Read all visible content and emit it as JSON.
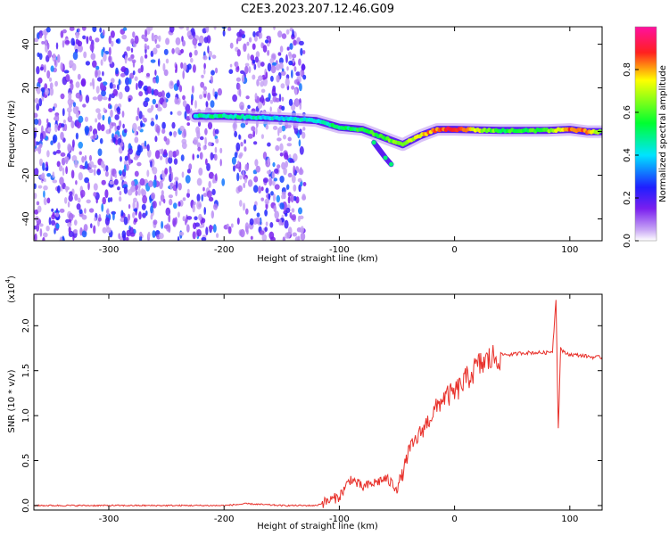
{
  "figure_title": "C2E3.2023.207.12.46.G09",
  "colors": {
    "series_line": "#e8302a",
    "axis": "#000000",
    "background": "#ffffff"
  },
  "chart_data": [
    {
      "type": "heatmap",
      "title": "",
      "xlabel": "Height of straight line (km)",
      "ylabel": "Frequency (Hz)",
      "xlim": [
        -365,
        128
      ],
      "ylim": [
        -50,
        48
      ],
      "x_ticks": [
        -300,
        -200,
        -100,
        0,
        100
      ],
      "y_ticks": [
        -40,
        -20,
        0,
        20,
        40
      ],
      "colorbar": {
        "label": "Normalized spectral amplitude",
        "range": [
          0.0,
          1.0
        ],
        "ticks": [
          0.0,
          0.2,
          0.4,
          0.6,
          0.8
        ],
        "colormap": "rainbow"
      },
      "features": {
        "noise_region_x": [
          -365,
          -130
        ],
        "signal_trace": [
          {
            "x": -225,
            "f": 7,
            "amp": 0.45
          },
          {
            "x": -200,
            "f": 7,
            "amp": 0.5
          },
          {
            "x": -150,
            "f": 6,
            "amp": 0.4
          },
          {
            "x": -120,
            "f": 5,
            "amp": 0.45
          },
          {
            "x": -100,
            "f": 2,
            "amp": 0.5
          },
          {
            "x": -80,
            "f": 1,
            "amp": 0.55
          },
          {
            "x": -60,
            "f": -3,
            "amp": 0.6
          },
          {
            "x": -45,
            "f": -6,
            "amp": 0.65
          },
          {
            "x": -30,
            "f": -2,
            "amp": 0.75
          },
          {
            "x": -15,
            "f": 1,
            "amp": 0.85
          },
          {
            "x": 0,
            "f": 1,
            "amp": 0.9
          },
          {
            "x": 40,
            "f": 0.5,
            "amp": 0.55
          },
          {
            "x": 80,
            "f": 0.5,
            "amp": 0.6
          },
          {
            "x": 100,
            "f": 1,
            "amp": 0.85
          },
          {
            "x": 115,
            "f": 0,
            "amp": 0.85
          },
          {
            "x": 128,
            "f": 0,
            "amp": 0.6
          }
        ],
        "branch": [
          {
            "x": -70,
            "f": -5
          },
          {
            "x": -60,
            "f": -12
          },
          {
            "x": -55,
            "f": -15
          }
        ]
      }
    },
    {
      "type": "line",
      "title": "",
      "xlabel": "Height of straight line (km)",
      "ylabel": "SNR (10 * v/v)",
      "multiplier_label": "(x10",
      "multiplier_exponent": "4",
      "multiplier_close": ")",
      "xlim": [
        -365,
        128
      ],
      "ylim": [
        -0.05,
        2.35
      ],
      "x_ticks": [
        -300,
        -200,
        -100,
        0,
        100
      ],
      "y_ticks": [
        0.0,
        0.5,
        1.0,
        1.5,
        2.0
      ],
      "series": [
        {
          "points": [
            [
              -365,
              0.0
            ],
            [
              -300,
              0.0
            ],
            [
              -250,
              0.0
            ],
            [
              -200,
              0.0
            ],
            [
              -180,
              0.02
            ],
            [
              -150,
              0.0
            ],
            [
              -120,
              0.0
            ],
            [
              -110,
              0.05
            ],
            [
              -100,
              0.1
            ],
            [
              -90,
              0.3
            ],
            [
              -80,
              0.2
            ],
            [
              -70,
              0.25
            ],
            [
              -60,
              0.3
            ],
            [
              -50,
              0.2
            ],
            [
              -45,
              0.35
            ],
            [
              -40,
              0.6
            ],
            [
              -30,
              0.8
            ],
            [
              -20,
              1.0
            ],
            [
              -10,
              1.2
            ],
            [
              0,
              1.25
            ],
            [
              10,
              1.4
            ],
            [
              20,
              1.55
            ],
            [
              30,
              1.62
            ],
            [
              40,
              1.68
            ],
            [
              50,
              1.68
            ],
            [
              60,
              1.7
            ],
            [
              70,
              1.7
            ],
            [
              80,
              1.7
            ],
            [
              85,
              1.72
            ],
            [
              88,
              2.3
            ],
            [
              90,
              0.85
            ],
            [
              92,
              1.75
            ],
            [
              95,
              1.7
            ],
            [
              100,
              1.68
            ],
            [
              110,
              1.67
            ],
            [
              120,
              1.65
            ],
            [
              128,
              1.65
            ]
          ]
        }
      ]
    }
  ]
}
